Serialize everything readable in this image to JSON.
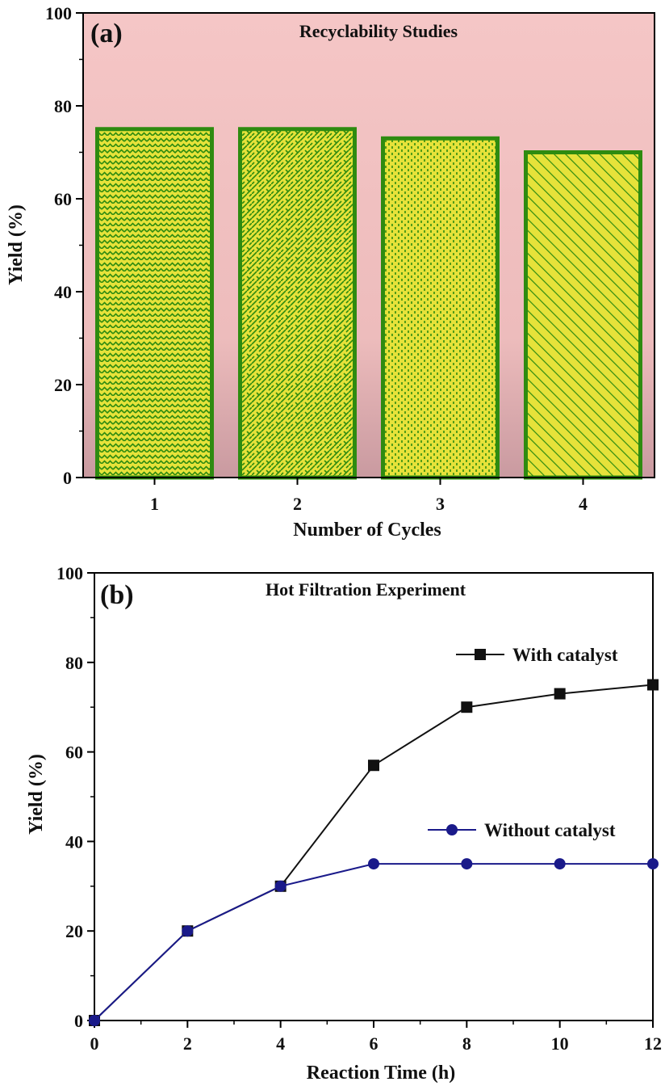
{
  "chart_data": [
    {
      "type": "bar",
      "panel_label": "(a)",
      "title": "Recyclability Studies",
      "xlabel": "Number of Cycles",
      "ylabel": "Yield (%)",
      "categories": [
        "1",
        "2",
        "3",
        "4"
      ],
      "values": [
        75,
        75,
        73,
        70
      ],
      "ylim": [
        0,
        100
      ],
      "yticks": [
        0,
        20,
        40,
        60,
        80,
        100
      ],
      "grid": false,
      "legend": "none",
      "colors": {
        "bar_fill": "#e6e23a",
        "bar_edge": "#2e8b10",
        "hatch": "#2e8b10",
        "background_top": "#f5c6c6",
        "background_bottom": "#c99aa0"
      }
    },
    {
      "type": "line",
      "panel_label": "(b)",
      "title": "Hot Filtration Experiment",
      "xlabel": "Reaction Time (h)",
      "ylabel": "Yield (%)",
      "xlim": [
        0,
        12
      ],
      "ylim": [
        0,
        100
      ],
      "xticks": [
        0,
        2,
        4,
        6,
        8,
        10,
        12
      ],
      "yticks": [
        0,
        20,
        40,
        60,
        80,
        100
      ],
      "grid": false,
      "legend": "right, inline labels",
      "series": [
        {
          "name": "With catalyst",
          "marker": "square",
          "color": "#111111",
          "x": [
            0,
            2,
            4,
            6,
            8,
            10,
            12
          ],
          "y": [
            0,
            20,
            30,
            57,
            70,
            73,
            75
          ]
        },
        {
          "name": "Without catalyst",
          "marker": "circle",
          "color": "#1a1a8a",
          "x": [
            0,
            2,
            4,
            6,
            8,
            10,
            12
          ],
          "y": [
            0,
            20,
            30,
            35,
            35,
            35,
            35
          ]
        }
      ]
    }
  ]
}
